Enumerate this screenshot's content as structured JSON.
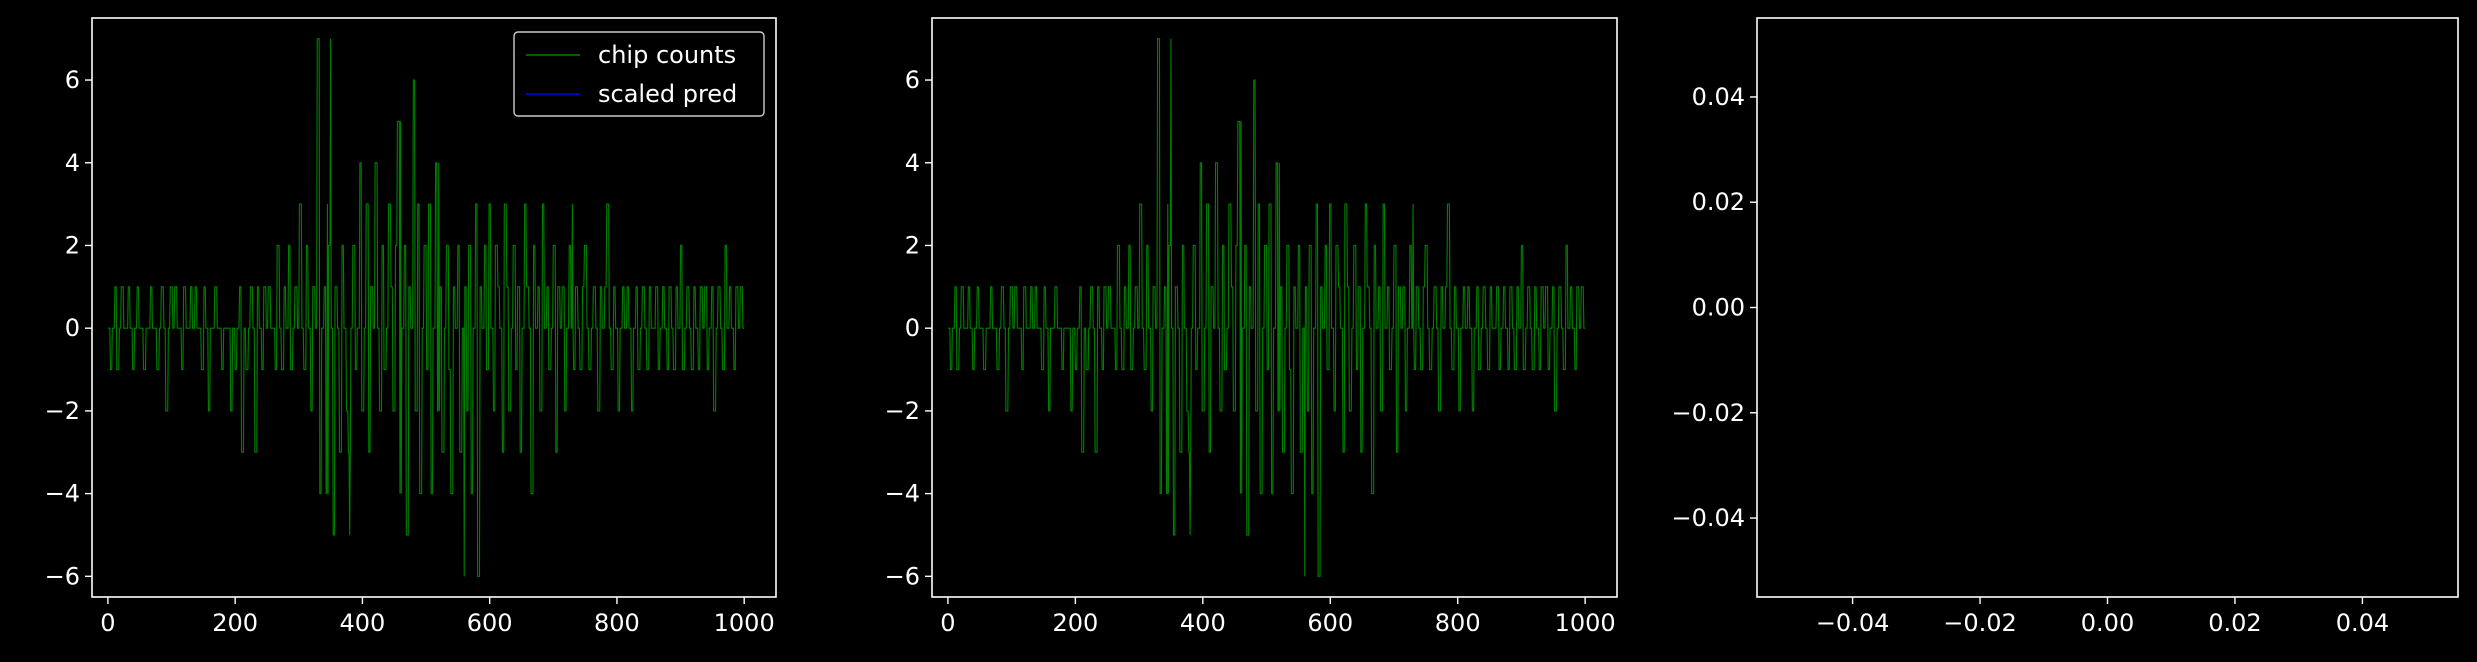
{
  "figure": {
    "background": "#000000",
    "foreground": "#ffffff"
  },
  "chart_data": [
    {
      "type": "line",
      "title": "",
      "xlabel": "",
      "ylabel": "",
      "xlim": [
        -25,
        1050
      ],
      "ylim": [
        -6.5,
        7.5
      ],
      "xticks": [
        0,
        200,
        400,
        600,
        800,
        1000
      ],
      "xtick_labels": [
        "0",
        "200",
        "400",
        "600",
        "800",
        "1000"
      ],
      "yticks": [
        -6,
        -4,
        -2,
        0,
        2,
        4,
        6
      ],
      "ytick_labels": [
        "−6",
        "−4",
        "−2",
        "0",
        "2",
        "4",
        "6"
      ],
      "grid": false,
      "legend": {
        "placement": "upper right",
        "entries": [
          "chip counts",
          "scaled pred"
        ]
      },
      "series": [
        {
          "name": "chip counts",
          "color": "#008000",
          "x_start": 0,
          "x_step": 1,
          "peaks": [
            [
              350,
              7
            ],
            [
              480,
              6
            ],
            [
              460,
              5
            ],
            [
              560,
              -6
            ],
            [
              345,
              3
            ],
            [
              420,
              4
            ],
            [
              520,
              4
            ],
            [
              730,
              3
            ],
            [
              380,
              -5
            ],
            [
              470,
              -5
            ]
          ],
          "y": [
            0,
            -1,
            0,
            1,
            -1,
            0,
            1,
            0,
            0,
            1,
            0,
            -1,
            0,
            1,
            0,
            0,
            -1,
            0,
            0,
            1,
            0,
            0,
            -1,
            0,
            1,
            0,
            -2,
            0,
            1,
            0,
            1,
            0,
            0,
            -1,
            1,
            0,
            0,
            1,
            0,
            1,
            0,
            0,
            -1,
            1,
            0,
            -2,
            0,
            0,
            1,
            0,
            0,
            -1,
            0,
            0,
            0,
            -2,
            0,
            -1,
            0,
            1,
            -3,
            0,
            -1,
            0,
            1,
            0,
            -3,
            1,
            0,
            -1,
            1,
            0,
            1,
            0,
            0,
            -1,
            2,
            0,
            -1,
            1,
            0,
            2,
            -1,
            0,
            1,
            0,
            3,
            0,
            -1,
            2,
            0,
            -2,
            1,
            0,
            7,
            -4,
            0,
            1,
            -4,
            2,
            0,
            -5,
            1,
            0,
            -3,
            2,
            0,
            -2,
            -3,
            0,
            2,
            -1,
            0,
            4,
            -2,
            0,
            3,
            -3,
            1,
            0,
            4,
            0,
            -2,
            2,
            -1,
            0,
            3,
            1,
            -2,
            2,
            5,
            -4,
            0,
            2,
            -5,
            1,
            0,
            6,
            -2,
            3,
            -4,
            0,
            2,
            -1,
            3,
            -4,
            0,
            4,
            -2,
            1,
            -3,
            0,
            2,
            -1,
            -4,
            1,
            0,
            2,
            -3,
            0,
            1,
            -2,
            2,
            -4,
            0,
            3,
            -6,
            1,
            0,
            2,
            -1,
            3,
            0,
            -2,
            2,
            1,
            0,
            -3,
            3,
            1,
            -2,
            0,
            2,
            -1,
            1,
            -3,
            0,
            3,
            1,
            0,
            -4,
            2,
            0,
            1,
            -2,
            3,
            0,
            1,
            -1,
            0,
            2,
            -3,
            1,
            0,
            1,
            -2,
            0,
            2,
            0,
            -1,
            1,
            0,
            -1,
            1,
            2,
            0,
            -1,
            0,
            1,
            0,
            -2,
            1,
            0,
            1,
            3,
            0,
            -1,
            1,
            0,
            -2,
            0,
            1,
            0,
            1,
            0,
            -2,
            0,
            1,
            -1,
            0,
            1,
            0,
            -1,
            1,
            0,
            0,
            1,
            -1,
            0,
            1,
            0,
            -1,
            1,
            0,
            -1,
            1,
            0,
            2,
            -1,
            0,
            1,
            0,
            -1,
            1,
            0,
            -1,
            1,
            0,
            1,
            -1,
            0,
            1,
            -2,
            0,
            1,
            0,
            -1,
            2,
            0,
            1,
            0,
            -1,
            1,
            0,
            1,
            0
          ]
        },
        {
          "name": "scaled pred",
          "color": "#0000ff",
          "values": []
        }
      ]
    },
    {
      "type": "line",
      "title": "",
      "xlabel": "",
      "ylabel": "",
      "xlim": [
        -25,
        1050
      ],
      "ylim": [
        -6.5,
        7.5
      ],
      "xticks": [
        0,
        200,
        400,
        600,
        800,
        1000
      ],
      "xtick_labels": [
        "0",
        "200",
        "400",
        "600",
        "800",
        "1000"
      ],
      "yticks": [
        -6,
        -4,
        -2,
        0,
        2,
        4,
        6
      ],
      "ytick_labels": [
        "−6",
        "−4",
        "−2",
        "0",
        "2",
        "4",
        "6"
      ],
      "grid": false,
      "series": [
        {
          "color": "#008000",
          "same_as_panel": 0
        }
      ]
    },
    {
      "type": "line",
      "title": "",
      "xlabel": "",
      "ylabel": "",
      "xlim": [
        -0.055,
        0.055
      ],
      "ylim": [
        -0.055,
        0.055
      ],
      "xticks": [
        -0.04,
        -0.02,
        0.0,
        0.02,
        0.04
      ],
      "xtick_labels": [
        "−0.04",
        "−0.02",
        "0.00",
        "0.02",
        "0.04"
      ],
      "yticks": [
        -0.04,
        -0.02,
        0.0,
        0.02,
        0.04
      ],
      "ytick_labels": [
        "−0.04",
        "−0.02",
        "0.00",
        "0.02",
        "0.04"
      ],
      "grid": false,
      "series": []
    }
  ]
}
